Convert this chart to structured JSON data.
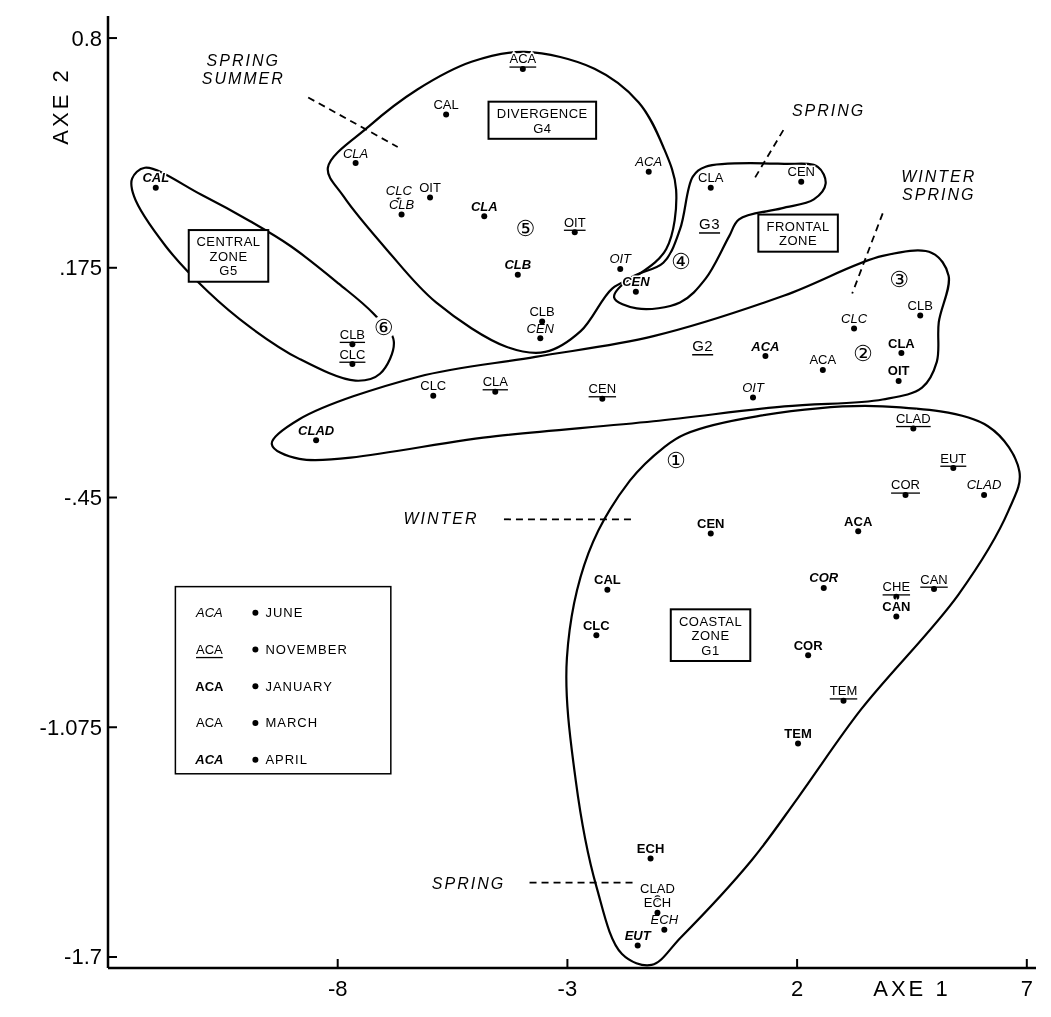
{
  "chart_data": {
    "type": "scatter",
    "xlabel": "AXE 1",
    "ylabel": "AXE 2",
    "xlim": [
      -13,
      7.2
    ],
    "ylim": [
      -1.73,
      0.86
    ],
    "xticks": [
      -8,
      -3,
      2,
      7
    ],
    "yticks": [
      {
        "value": 0.8,
        "label": "0.8"
      },
      {
        "value": 0.175,
        "label": ".175"
      },
      {
        "value": -0.45,
        "label": "-.45"
      },
      {
        "value": -1.075,
        "label": "-1.075"
      },
      {
        "value": -1.7,
        "label": "-1.7"
      }
    ],
    "marker": "circle",
    "grid": false,
    "legend": "bottom left",
    "series": [
      {
        "name": "JUNE",
        "color": "#000000",
        "x": [
          -7.61,
          -6.67,
          -6.61,
          -1.23,
          -1.85,
          -3.59,
          3.24,
          1.04,
          6.07,
          -0.89
        ],
        "values": [
          0.46,
          0.358,
          0.32,
          0.436,
          0.172,
          -0.017,
          0.01,
          -0.178,
          -0.443,
          -1.626
        ],
        "value_labels": [
          "CLA",
          "CLC",
          "CLB",
          "ACA",
          "OIT",
          "CEN",
          "CLC",
          "OIT",
          "CLAD",
          "ECH"
        ]
      },
      {
        "name": "NOVEMBER",
        "color": "#000000",
        "x": [
          -3.97,
          -2.84,
          -7.68,
          -7.68,
          -4.57,
          -2.24,
          4.53,
          5.4,
          4.36,
          4.16,
          4.98,
          3.01
        ],
        "values": [
          0.716,
          0.272,
          -0.033,
          -0.087,
          -0.162,
          -0.181,
          -0.262,
          -0.37,
          -0.443,
          -0.72,
          -0.699,
          -1.003
        ],
        "value_labels": [
          "ACA",
          "OIT",
          "CLB",
          "CLC",
          "CLA",
          "CEN",
          "CLAD",
          "EUT",
          "COR",
          "CHE",
          "CAN",
          "TEM"
        ]
      },
      {
        "name": "JANUARY",
        "color": "#000000",
        "x": [
          4.27,
          4.21,
          0.12,
          3.33,
          -2.13,
          4.16,
          -2.37,
          2.24,
          2.02,
          -1.19
        ],
        "values": [
          -0.057,
          -0.133,
          -0.548,
          -0.542,
          -0.701,
          -0.774,
          -0.825,
          -0.879,
          -1.119,
          -1.432
        ],
        "value_labels": [
          "CLA",
          "OIT",
          "CEN",
          "ACA",
          "CAL",
          "CAN",
          "CLC",
          "COR",
          "TEM",
          "ECH"
        ]
      },
      {
        "name": "MARCH",
        "color": "#000000",
        "x": [
          -5.64,
          -5.99,
          -3.55,
          0.12,
          2.09,
          4.68,
          2.56,
          -5.92,
          -1.04,
          -1.04
        ],
        "values": [
          0.592,
          0.366,
          0.029,
          0.393,
          0.409,
          0.045,
          -0.103,
          -0.173,
          -1.54,
          -1.58
        ],
        "value_labels": [
          "CAL",
          "OIT",
          "CLB",
          "CLA",
          "CEN",
          "CLB",
          "ACA",
          "CLC",
          "CLAD",
          "ECH"
        ]
      },
      {
        "name": "APRIL",
        "color": "#000000",
        "x": [
          -11.96,
          -4.81,
          -4.08,
          -1.51,
          1.31,
          -8.47,
          2.58,
          -1.47
        ],
        "values": [
          0.393,
          0.315,
          0.156,
          0.11,
          -0.065,
          -0.294,
          -0.696,
          -1.669
        ],
        "value_labels": [
          "CAL",
          "CLA",
          "CLB",
          "CEN",
          "ACA",
          "CLAD",
          "COR",
          "EUT"
        ]
      }
    ],
    "annotations": [
      "SPRING\nSUMMER",
      "SPRING",
      "WINTER\nSPRING",
      "WINTER",
      "SPRING",
      "CENTRAL\nZONE\nG5",
      "DIVERGENCE\nG4",
      "FRONTAL\nZONE",
      "G3",
      "G2",
      "COASTAL\nZONE\nG1",
      "①",
      "②",
      "③",
      "④",
      "⑤",
      "⑥",
      "ACA",
      "ACA",
      "ACA",
      "ACA",
      "ACA"
    ]
  }
}
